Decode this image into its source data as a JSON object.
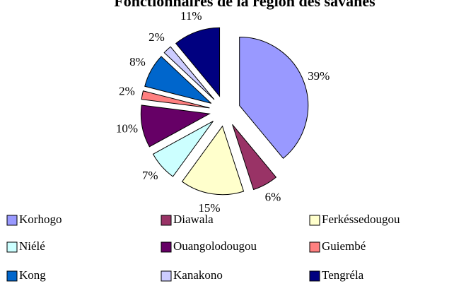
{
  "chart_data": {
    "type": "pie",
    "title": "Fonctionnaires de la région des savanes",
    "categories": [
      "Korhogo",
      "Diawala",
      "Ferkéssedougou",
      "Niélé",
      "Ouangolodougou",
      "Guiembé",
      "Kong",
      "Kanakono",
      "Tengréla"
    ],
    "values": [
      39,
      6,
      15,
      7,
      10,
      2,
      8,
      2,
      11
    ],
    "value_labels": [
      "39%",
      "6%",
      "15%",
      "7%",
      "10%",
      "2%",
      "8%",
      "2%",
      "11%"
    ],
    "colors": [
      "#9999ff",
      "#993366",
      "#ffffcc",
      "#ccffff",
      "#660066",
      "#ff8080",
      "#0066cc",
      "#ccccff",
      "#000080"
    ],
    "legend": "bottom"
  }
}
